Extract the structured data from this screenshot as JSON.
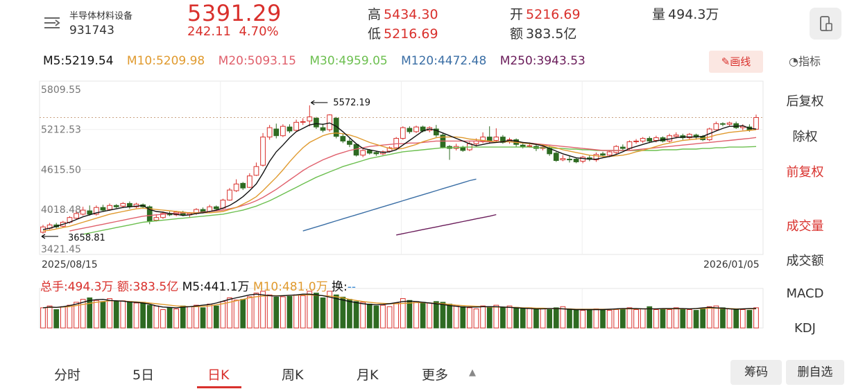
{
  "header": {
    "name": "半导体材料设备",
    "code": "931743",
    "price": "5391.29",
    "change": "242.11",
    "change_pct": "4.70%",
    "high_label": "高",
    "high": "5434.30",
    "low_label": "低",
    "low": "5216.69",
    "open_label": "开",
    "open": "5216.69",
    "amount_label": "额",
    "amount": "383.5亿",
    "volume_label": "量",
    "volume": "494.3万"
  },
  "ma": {
    "m5": "M5:5219.54",
    "m10": "M10:5209.98",
    "m20": "M20:5093.15",
    "m30": "M30:4959.05",
    "m120": "M120:4472.48",
    "m250": "M250:3943.53"
  },
  "draw_button": "画线",
  "indicator_button": "指标",
  "colors": {
    "up": "#d9302c",
    "down": "#2e6b22",
    "m5": "#111111",
    "m10": "#e09a2e",
    "m20": "#e0606c",
    "m30": "#6cbf4f",
    "m120": "#3a6ea5",
    "m250": "#6a1c5a"
  },
  "chart_data": {
    "type": "candlestick",
    "y_ticks": [
      "5809.55",
      "5212.53",
      "4615.50",
      "4018.48",
      "3421.45"
    ],
    "ylim": [
      3421.45,
      5809.55
    ],
    "max_label": "5572.19",
    "min_label": "3658.81",
    "start_date": "2025/08/15",
    "end_date": "2026/01/05",
    "last_close": 5391.29,
    "candles": [
      [
        3680,
        3760,
        3660,
        3790
      ],
      [
        3740,
        3790,
        3720,
        3820
      ],
      [
        3790,
        3760,
        3740,
        3820
      ],
      [
        3770,
        3830,
        3750,
        3850
      ],
      [
        3830,
        3900,
        3810,
        3920
      ],
      [
        3890,
        3960,
        3870,
        3990
      ],
      [
        3950,
        4010,
        3930,
        4060
      ],
      [
        4000,
        3950,
        3930,
        4080
      ],
      [
        3950,
        4050,
        3930,
        4080
      ],
      [
        4050,
        4010,
        3990,
        4090
      ],
      [
        4020,
        4080,
        4000,
        4110
      ],
      [
        4080,
        4060,
        4040,
        4100
      ],
      [
        4070,
        4110,
        4040,
        4130
      ],
      [
        4110,
        4060,
        4030,
        4140
      ],
      [
        4060,
        4100,
        4040,
        4120
      ],
      [
        4090,
        4060,
        4030,
        4110
      ],
      [
        4060,
        3850,
        3800,
        4080
      ],
      [
        3860,
        3900,
        3840,
        3950
      ],
      [
        3900,
        3960,
        3880,
        3990
      ],
      [
        3960,
        3940,
        3920,
        3990
      ],
      [
        3940,
        3980,
        3920,
        4000
      ],
      [
        3980,
        3940,
        3920,
        4000
      ],
      [
        3940,
        3960,
        3900,
        3980
      ],
      [
        3960,
        4020,
        3940,
        4040
      ],
      [
        4020,
        3990,
        3960,
        4050
      ],
      [
        3990,
        4060,
        3970,
        4090
      ],
      [
        4060,
        4030,
        4010,
        4080
      ],
      [
        4040,
        4160,
        4020,
        4180
      ],
      [
        4160,
        4310,
        4150,
        4340
      ],
      [
        4300,
        4400,
        4280,
        4470
      ],
      [
        4410,
        4340,
        4310,
        4430
      ],
      [
        4350,
        4520,
        4340,
        4560
      ],
      [
        4530,
        4660,
        4520,
        4720
      ],
      [
        4680,
        5100,
        4660,
        5160
      ],
      [
        5100,
        5240,
        5060,
        5280
      ],
      [
        5220,
        5120,
        5080,
        5300
      ],
      [
        5120,
        5260,
        5100,
        5290
      ],
      [
        5250,
        5190,
        5160,
        5290
      ],
      [
        5200,
        5320,
        5180,
        5360
      ],
      [
        5320,
        5330,
        5280,
        5380
      ],
      [
        5340,
        5400,
        5260,
        5572.19
      ],
      [
        5380,
        5250,
        5220,
        5400
      ],
      [
        5240,
        5200,
        5170,
        5300
      ],
      [
        5210,
        5430,
        5180,
        5440
      ],
      [
        5380,
        5110,
        5080,
        5400
      ],
      [
        5110,
        5040,
        5010,
        5150
      ],
      [
        5040,
        4990,
        4950,
        5080
      ],
      [
        4990,
        4830,
        4810,
        5000
      ],
      [
        4830,
        4900,
        4800,
        4920
      ],
      [
        4900,
        4860,
        4840,
        4920
      ],
      [
        4870,
        4850,
        4820,
        4890
      ],
      [
        4850,
        4880,
        4830,
        4900
      ],
      [
        4890,
        4940,
        4870,
        4960
      ],
      [
        4940,
        5080,
        4920,
        5100
      ],
      [
        5080,
        5240,
        5060,
        5260
      ],
      [
        5230,
        5180,
        5150,
        5260
      ],
      [
        5180,
        5250,
        5160,
        5270
      ],
      [
        5250,
        5190,
        5170,
        5270
      ],
      [
        5200,
        5240,
        5170,
        5260
      ],
      [
        5220,
        5130,
        5100,
        5280
      ],
      [
        5130,
        4950,
        4930,
        5160
      ],
      [
        4960,
        4930,
        4760,
        4980
      ],
      [
        4930,
        4960,
        4900,
        5000
      ],
      [
        4950,
        4900,
        4880,
        4970
      ],
      [
        4910,
        5000,
        4890,
        5030
      ],
      [
        5000,
        5040,
        4960,
        5080
      ],
      [
        5040,
        5100,
        5010,
        5170
      ],
      [
        5100,
        5030,
        5000,
        5260
      ],
      [
        5050,
        5100,
        5020,
        5230
      ],
      [
        5100,
        5020,
        5000,
        5130
      ],
      [
        5030,
        5060,
        5000,
        5090
      ],
      [
        5060,
        4990,
        4950,
        5080
      ],
      [
        4980,
        4960,
        4930,
        5010
      ],
      [
        4960,
        4970,
        4940,
        5000
      ],
      [
        4960,
        4930,
        4890,
        4990
      ],
      [
        4930,
        4950,
        4900,
        4980
      ],
      [
        4940,
        4850,
        4820,
        4970
      ],
      [
        4860,
        4750,
        4730,
        4880
      ],
      [
        4760,
        4780,
        4740,
        4830
      ],
      [
        4770,
        4760,
        4720,
        4820
      ],
      [
        4770,
        4730,
        4710,
        4790
      ],
      [
        4740,
        4800,
        4710,
        4820
      ],
      [
        4790,
        4770,
        4740,
        4830
      ],
      [
        4760,
        4840,
        4730,
        4870
      ],
      [
        4850,
        4830,
        4800,
        4880
      ],
      [
        4830,
        4880,
        4800,
        4900
      ],
      [
        4870,
        4960,
        4840,
        4980
      ],
      [
        4950,
        4930,
        4900,
        4990
      ],
      [
        4930,
        5030,
        4910,
        5050
      ],
      [
        5030,
        5040,
        5000,
        5070
      ],
      [
        5040,
        5080,
        5010,
        5100
      ],
      [
        5080,
        5040,
        5010,
        5110
      ],
      [
        5050,
        5090,
        5020,
        5120
      ],
      [
        5090,
        5040,
        5020,
        5110
      ],
      [
        5040,
        5120,
        5020,
        5150
      ],
      [
        5110,
        5130,
        5080,
        5170
      ],
      [
        5120,
        5090,
        5060,
        5150
      ],
      [
        5090,
        5140,
        5060,
        5160
      ],
      [
        5130,
        5100,
        5060,
        5150
      ],
      [
        5110,
        5060,
        5040,
        5130
      ],
      [
        5060,
        5220,
        5040,
        5240
      ],
      [
        5210,
        5300,
        5200,
        5330
      ],
      [
        5300,
        5290,
        5260,
        5320
      ],
      [
        5290,
        5310,
        5270,
        5330
      ],
      [
        5300,
        5240,
        5220,
        5330
      ],
      [
        5240,
        5260,
        5200,
        5290
      ],
      [
        5250,
        5210,
        5180,
        5290
      ],
      [
        5216.69,
        5391.29,
        5216.69,
        5434.3
      ]
    ],
    "ma5": [
      3720,
      3740,
      3770,
      3800,
      3830,
      3870,
      3910,
      3940,
      3970,
      3990,
      4010,
      4030,
      4050,
      4060,
      4070,
      4080,
      4020,
      3990,
      3980,
      3960,
      3950,
      3930,
      3940,
      3960,
      3970,
      3990,
      4010,
      4040,
      4080,
      4140,
      4210,
      4300,
      4400,
      4560,
      4740,
      4880,
      4980,
      5090,
      5180,
      5230,
      5280,
      5300,
      5290,
      5310,
      5260,
      5180,
      5090,
      5000,
      4930,
      4910,
      4890,
      4870,
      4880,
      4910,
      4980,
      5050,
      5120,
      5190,
      5220,
      5200,
      5160,
      5120,
      5080,
      5040,
      5000,
      4970,
      4990,
      5010,
      5020,
      5030,
      5050,
      5040,
      5020,
      5010,
      4990,
      4970,
      4930,
      4890,
      4850,
      4820,
      4790,
      4780,
      4770,
      4770,
      4790,
      4810,
      4840,
      4880,
      4930,
      4960,
      4990,
      5020,
      5040,
      5060,
      5070,
      5090,
      5100,
      5100,
      5100,
      5110,
      5150,
      5190,
      5230,
      5260,
      5260,
      5270,
      5230,
      5219.54
    ],
    "ma10": [
      3700,
      3710,
      3730,
      3750,
      3770,
      3800,
      3830,
      3860,
      3890,
      3920,
      3950,
      3970,
      3990,
      4010,
      4030,
      4040,
      4030,
      4020,
      4010,
      4000,
      3990,
      3980,
      3970,
      3970,
      3970,
      3970,
      3980,
      3990,
      4020,
      4050,
      4100,
      4150,
      4210,
      4300,
      4400,
      4500,
      4610,
      4730,
      4840,
      4940,
      5020,
      5070,
      5120,
      5150,
      5160,
      5150,
      5130,
      5100,
      5060,
      5020,
      4990,
      4960,
      4930,
      4920,
      4930,
      4960,
      4990,
      5030,
      5060,
      5090,
      5100,
      5100,
      5100,
      5090,
      5070,
      5060,
      5050,
      5040,
      5030,
      5030,
      5030,
      5020,
      5010,
      5000,
      4990,
      4980,
      4960,
      4940,
      4910,
      4890,
      4870,
      4850,
      4830,
      4820,
      4810,
      4810,
      4820,
      4830,
      4850,
      4880,
      4900,
      4930,
      4960,
      4990,
      5010,
      5030,
      5050,
      5060,
      5070,
      5080,
      5100,
      5130,
      5150,
      5170,
      5180,
      5190,
      5200,
      5209.98
    ],
    "ma20": [
      null,
      null,
      null,
      null,
      3700,
      3720,
      3740,
      3760,
      3780,
      3800,
      3820,
      3840,
      3860,
      3880,
      3900,
      3920,
      3930,
      3940,
      3950,
      3960,
      3960,
      3970,
      3970,
      3970,
      3980,
      3990,
      4000,
      4010,
      4030,
      4050,
      4080,
      4110,
      4150,
      4200,
      4260,
      4320,
      4390,
      4460,
      4530,
      4600,
      4660,
      4710,
      4760,
      4800,
      4840,
      4870,
      4900,
      4920,
      4940,
      4960,
      4970,
      4980,
      4990,
      5000,
      5000,
      5010,
      5010,
      5020,
      5030,
      5040,
      5040,
      5040,
      5040,
      5040,
      5040,
      5040,
      5030,
      5030,
      5030,
      5030,
      5030,
      5020,
      5020,
      5010,
      5000,
      4990,
      4980,
      4970,
      4960,
      4950,
      4940,
      4930,
      4920,
      4910,
      4900,
      4900,
      4900,
      4900,
      4900,
      4910,
      4920,
      4930,
      4940,
      4950,
      4960,
      4970,
      4980,
      4990,
      5000,
      5010,
      5020,
      5030,
      5040,
      5050,
      5060,
      5070,
      5080,
      5093.15
    ],
    "ma30": [
      null,
      null,
      null,
      null,
      null,
      null,
      3650,
      3670,
      3690,
      3710,
      3730,
      3750,
      3770,
      3790,
      3810,
      3830,
      3840,
      3850,
      3860,
      3870,
      3880,
      3890,
      3900,
      3910,
      3920,
      3930,
      3940,
      3950,
      3970,
      3990,
      4010,
      4040,
      4070,
      4110,
      4150,
      4200,
      4250,
      4300,
      4350,
      4400,
      4450,
      4500,
      4540,
      4580,
      4620,
      4660,
      4690,
      4720,
      4750,
      4780,
      4800,
      4820,
      4840,
      4860,
      4880,
      4890,
      4900,
      4910,
      4920,
      4930,
      4940,
      4940,
      4940,
      4950,
      4950,
      4950,
      4950,
      4950,
      4950,
      4950,
      4950,
      4950,
      4950,
      4950,
      4940,
      4940,
      4940,
      4930,
      4930,
      4920,
      4920,
      4910,
      4910,
      4900,
      4900,
      4900,
      4900,
      4900,
      4900,
      4900,
      4900,
      4900,
      4900,
      4910,
      4910,
      4910,
      4920,
      4920,
      4920,
      4930,
      4930,
      4940,
      4940,
      4950,
      4950,
      4950,
      4955,
      4959.05
    ],
    "ma120_from": 39,
    "ma120": [
      3700,
      3730,
      3760,
      3790,
      3820,
      3850,
      3880,
      3910,
      3940,
      3970,
      4000,
      4030,
      4060,
      4090,
      4120,
      4150,
      4180,
      4210,
      4240,
      4270,
      4300,
      4330,
      4360,
      4390,
      4420,
      4450,
      4472.48
    ],
    "ma250_from": 53,
    "ma250": [
      3640,
      3660,
      3680,
      3700,
      3720,
      3740,
      3760,
      3780,
      3800,
      3820,
      3840,
      3860,
      3880,
      3900,
      3920,
      3943.53
    ],
    "volume_ratio": [
      0.55,
      0.6,
      0.5,
      0.58,
      0.62,
      0.7,
      0.78,
      0.82,
      0.75,
      0.72,
      0.8,
      0.72,
      0.74,
      0.72,
      0.68,
      0.7,
      0.62,
      0.6,
      0.5,
      0.55,
      0.52,
      0.6,
      0.58,
      0.62,
      0.55,
      0.65,
      0.6,
      0.72,
      0.82,
      0.76,
      0.78,
      0.85,
      0.95,
      1.0,
      0.9,
      0.84,
      0.85,
      0.86,
      0.9,
      0.88,
      1.0,
      0.95,
      0.82,
      1.0,
      0.9,
      0.84,
      0.78,
      0.72,
      0.7,
      0.65,
      0.6,
      0.62,
      0.58,
      0.68,
      0.8,
      0.75,
      0.72,
      0.7,
      0.68,
      0.72,
      0.7,
      0.65,
      0.6,
      0.58,
      0.55,
      0.52,
      0.6,
      0.58,
      0.62,
      0.55,
      0.6,
      0.56,
      0.52,
      0.55,
      0.5,
      0.52,
      0.5,
      0.55,
      0.58,
      0.52,
      0.5,
      0.48,
      0.5,
      0.52,
      0.5,
      0.48,
      0.5,
      0.52,
      0.55,
      0.5,
      0.52,
      0.58,
      0.5,
      0.52,
      0.5,
      0.55,
      0.52,
      0.5,
      0.48,
      0.52,
      0.58,
      0.6,
      0.55,
      0.52,
      0.5,
      0.5,
      0.48,
      0.55
    ],
    "vol_ma5": [
      0.55,
      0.57,
      0.56,
      0.58,
      0.61,
      0.65,
      0.7,
      0.75,
      0.77,
      0.78,
      0.75,
      0.74,
      0.73,
      0.71,
      0.7,
      0.68,
      0.65,
      0.6,
      0.57,
      0.56,
      0.55,
      0.57,
      0.58,
      0.6,
      0.62,
      0.64,
      0.68,
      0.73,
      0.78,
      0.82,
      0.86,
      0.9,
      0.92,
      0.9,
      0.88,
      0.87,
      0.88,
      0.89,
      0.9,
      0.92,
      0.92,
      0.9,
      0.88,
      0.84,
      0.8,
      0.76,
      0.72,
      0.69,
      0.66,
      0.64,
      0.63,
      0.64,
      0.66,
      0.69,
      0.72,
      0.73,
      0.72,
      0.7,
      0.68,
      0.66,
      0.64,
      0.61,
      0.59,
      0.57,
      0.57,
      0.57,
      0.58,
      0.58,
      0.58,
      0.57,
      0.56,
      0.55,
      0.54,
      0.53,
      0.52,
      0.52,
      0.53,
      0.53,
      0.52,
      0.51,
      0.5,
      0.5,
      0.5,
      0.5,
      0.5,
      0.51,
      0.52,
      0.53,
      0.53,
      0.53,
      0.52,
      0.52,
      0.52,
      0.53,
      0.53,
      0.53,
      0.53,
      0.52,
      0.53,
      0.55,
      0.56,
      0.55,
      0.54,
      0.52,
      0.51,
      0.52,
      0.53,
      0.53
    ],
    "vol_ma10": [
      0.55,
      0.56,
      0.56,
      0.57,
      0.58,
      0.61,
      0.64,
      0.67,
      0.7,
      0.72,
      0.74,
      0.74,
      0.73,
      0.72,
      0.71,
      0.7,
      0.68,
      0.66,
      0.64,
      0.62,
      0.6,
      0.59,
      0.58,
      0.58,
      0.59,
      0.6,
      0.63,
      0.66,
      0.7,
      0.74,
      0.78,
      0.82,
      0.85,
      0.87,
      0.88,
      0.88,
      0.88,
      0.89,
      0.89,
      0.9,
      0.9,
      0.89,
      0.88,
      0.87,
      0.85,
      0.82,
      0.78,
      0.75,
      0.72,
      0.7,
      0.68,
      0.67,
      0.66,
      0.66,
      0.67,
      0.68,
      0.69,
      0.69,
      0.68,
      0.67,
      0.66,
      0.64,
      0.62,
      0.61,
      0.6,
      0.59,
      0.58,
      0.57,
      0.57,
      0.57,
      0.56,
      0.56,
      0.55,
      0.55,
      0.54,
      0.54,
      0.53,
      0.53,
      0.52,
      0.52,
      0.51,
      0.51,
      0.51,
      0.51,
      0.51,
      0.51,
      0.51,
      0.52,
      0.52,
      0.52,
      0.52,
      0.52,
      0.52,
      0.52,
      0.52,
      0.52,
      0.52,
      0.52,
      0.53,
      0.53,
      0.54,
      0.54,
      0.53,
      0.53,
      0.52,
      0.52,
      0.52,
      0.52
    ]
  },
  "volume_row": {
    "total": "总手:494.3万",
    "amount": "额:383.5亿",
    "m5": "M5:441.1万",
    "m10": "M10:481.0万",
    "turnover_label": "换:",
    "turnover": "--"
  },
  "side_menu": [
    "后复权",
    "除权",
    "前复权",
    "成交量",
    "成交额",
    "MACD",
    "KDJ"
  ],
  "tabs": [
    "分时",
    "5日",
    "日K",
    "周K",
    "月K",
    "更多"
  ],
  "bottom_buttons": {
    "chips": "筹码",
    "delete_watch": "删自选"
  }
}
